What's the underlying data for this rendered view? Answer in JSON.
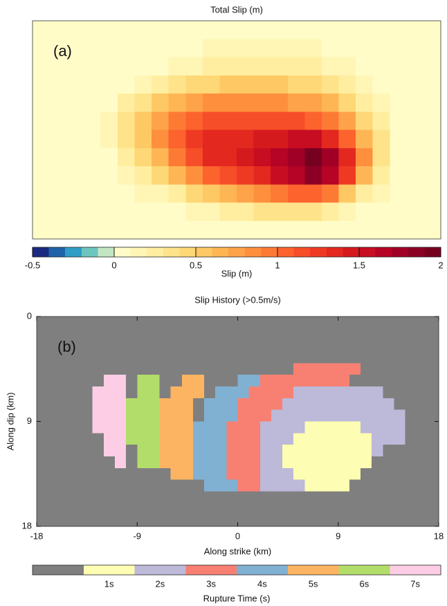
{
  "chart_data": [
    {
      "type": "heatmap",
      "title": "Total Slip (m)",
      "annotation": "(a)",
      "z": [
        [
          0,
          0,
          0,
          0,
          0,
          0,
          0,
          0,
          0,
          0,
          0,
          0,
          0,
          0,
          0,
          0,
          0,
          0,
          0,
          0,
          0,
          0,
          0,
          0
        ],
        [
          0,
          0,
          0,
          0,
          0,
          0,
          0,
          0,
          0,
          0,
          0.1,
          0.1,
          0.1,
          0.1,
          0.1,
          0.1,
          0.1,
          0,
          0,
          0,
          0,
          0,
          0,
          0
        ],
        [
          0,
          0,
          0,
          0,
          0,
          0,
          0,
          0,
          0.1,
          0.1,
          0.2,
          0.2,
          0.2,
          0.2,
          0.2,
          0.2,
          0.2,
          0.1,
          0.1,
          0,
          0,
          0,
          0,
          0
        ],
        [
          0,
          0,
          0,
          0,
          0,
          0,
          0.1,
          0.2,
          0.3,
          0.4,
          0.4,
          0.5,
          0.5,
          0.5,
          0.5,
          0.4,
          0.4,
          0.3,
          0.2,
          0.1,
          0,
          0,
          0,
          0
        ],
        [
          0,
          0,
          0,
          0,
          0,
          0.2,
          0.3,
          0.5,
          0.6,
          0.7,
          0.8,
          0.8,
          0.8,
          0.8,
          0.8,
          0.7,
          0.7,
          0.6,
          0.4,
          0.2,
          0.1,
          0,
          0,
          0
        ],
        [
          0,
          0,
          0,
          0,
          0.1,
          0.3,
          0.5,
          0.7,
          0.9,
          1.0,
          1.1,
          1.1,
          1.1,
          1.1,
          1.1,
          1.1,
          1.0,
          0.9,
          0.7,
          0.4,
          0.2,
          0,
          0,
          0
        ],
        [
          0,
          0,
          0,
          0,
          0.1,
          0.3,
          0.5,
          0.8,
          1.0,
          1.2,
          1.3,
          1.3,
          1.3,
          1.4,
          1.4,
          1.5,
          1.5,
          1.3,
          1.0,
          0.6,
          0.3,
          0,
          0,
          0
        ],
        [
          0,
          0,
          0,
          0,
          0,
          0.2,
          0.4,
          0.6,
          0.9,
          1.1,
          1.3,
          1.3,
          1.4,
          1.5,
          1.6,
          1.7,
          1.9,
          1.7,
          1.3,
          0.8,
          0.3,
          0,
          0,
          0
        ],
        [
          0,
          0,
          0,
          0,
          0,
          0.1,
          0.2,
          0.4,
          0.6,
          0.8,
          1.0,
          1.1,
          1.2,
          1.3,
          1.5,
          1.6,
          1.8,
          1.6,
          1.2,
          0.6,
          0.2,
          0,
          0,
          0
        ],
        [
          0,
          0,
          0,
          0,
          0,
          0,
          0.1,
          0.1,
          0.2,
          0.4,
          0.5,
          0.6,
          0.7,
          0.8,
          0.9,
          1.0,
          1.0,
          0.9,
          0.5,
          0.2,
          0.1,
          0,
          0,
          0
        ],
        [
          0,
          0,
          0,
          0,
          0,
          0,
          0,
          0,
          0,
          0.1,
          0.1,
          0.2,
          0.2,
          0.3,
          0.3,
          0.3,
          0.3,
          0.2,
          0.1,
          0,
          0,
          0,
          0,
          0
        ],
        [
          0,
          0,
          0,
          0,
          0,
          0,
          0,
          0,
          0,
          0,
          0,
          0,
          0,
          0,
          0,
          0,
          0,
          0,
          0,
          0,
          0,
          0,
          0,
          0
        ]
      ],
      "colorbar": {
        "label": "Slip (m)",
        "clim": [
          -0.5,
          2
        ],
        "ticks": [
          -0.5,
          0,
          0.5,
          1,
          1.5,
          2
        ],
        "colors": [
          "#1b2a80",
          "#1f62a8",
          "#2f9dc6",
          "#6cc5be",
          "#c2e6c4",
          "#fffcc8",
          "#fff5b5",
          "#ffeea0",
          "#fee38a",
          "#fed876",
          "#fec864",
          "#feb655",
          "#fea349",
          "#fd8f3d",
          "#fd7a35",
          "#fc632d",
          "#f64e28",
          "#ef3a23",
          "#e3281f",
          "#d51a1e",
          "#c70d22",
          "#b50426",
          "#a10026",
          "#8c0026",
          "#76001f"
        ]
      }
    },
    {
      "type": "category-map",
      "title": "Slip History (>0.5m/s)",
      "annotation": "(b)",
      "x_label": "Along strike (km)",
      "y_label": "Along dip (km)",
      "xlim": [
        -18,
        18
      ],
      "ylim": [
        18,
        0
      ],
      "xticks": [
        -18,
        -9,
        0,
        9,
        18
      ],
      "yticks": [
        0,
        9,
        18
      ],
      "z": [
        [
          0,
          0,
          0,
          0,
          0,
          0,
          0,
          0,
          0,
          0,
          0,
          0,
          0,
          0,
          0,
          0,
          0,
          0,
          0,
          0,
          0,
          0,
          0,
          0,
          0,
          0,
          0,
          0,
          0,
          0,
          0,
          0,
          0,
          0,
          0,
          0
        ],
        [
          0,
          0,
          0,
          0,
          0,
          0,
          0,
          0,
          0,
          0,
          0,
          0,
          0,
          0,
          0,
          0,
          0,
          0,
          0,
          0,
          0,
          0,
          0,
          0,
          0,
          0,
          0,
          0,
          0,
          0,
          0,
          0,
          0,
          0,
          0,
          0
        ],
        [
          0,
          0,
          0,
          0,
          0,
          0,
          0,
          0,
          0,
          0,
          0,
          0,
          0,
          0,
          0,
          0,
          0,
          0,
          0,
          0,
          0,
          0,
          0,
          0,
          0,
          0,
          0,
          0,
          0,
          0,
          0,
          0,
          0,
          0,
          0,
          0
        ],
        [
          0,
          0,
          0,
          0,
          0,
          0,
          0,
          0,
          0,
          0,
          0,
          0,
          0,
          0,
          0,
          0,
          0,
          0,
          0,
          0,
          0,
          0,
          0,
          0,
          0,
          0,
          0,
          0,
          0,
          0,
          0,
          0,
          0,
          0,
          0,
          0
        ],
        [
          0,
          0,
          0,
          0,
          0,
          0,
          0,
          0,
          0,
          0,
          0,
          0,
          0,
          0,
          0,
          0,
          0,
          0,
          0,
          0,
          0,
          0,
          0,
          3,
          3,
          3,
          3,
          3,
          3,
          0,
          0,
          0,
          0,
          0,
          0,
          0
        ],
        [
          0,
          0,
          0,
          0,
          0,
          0,
          7,
          7,
          0,
          6,
          6,
          0,
          0,
          5,
          5,
          0,
          0,
          0,
          4,
          4,
          3,
          3,
          3,
          3,
          3,
          3,
          3,
          3,
          0,
          0,
          0,
          0,
          0,
          0,
          0,
          0
        ],
        [
          0,
          0,
          0,
          0,
          0,
          7,
          7,
          7,
          0,
          6,
          6,
          0,
          5,
          5,
          5,
          0,
          4,
          4,
          4,
          3,
          3,
          3,
          3,
          2,
          2,
          2,
          2,
          2,
          2,
          2,
          2,
          0,
          0,
          0,
          0,
          0
        ],
        [
          0,
          0,
          0,
          0,
          0,
          7,
          7,
          7,
          6,
          6,
          6,
          5,
          5,
          5,
          0,
          4,
          4,
          4,
          3,
          3,
          3,
          3,
          2,
          2,
          2,
          2,
          2,
          2,
          2,
          2,
          2,
          2,
          0,
          0,
          0,
          0
        ],
        [
          0,
          0,
          0,
          0,
          0,
          7,
          7,
          7,
          6,
          6,
          6,
          5,
          5,
          5,
          0,
          4,
          4,
          4,
          3,
          3,
          3,
          2,
          2,
          2,
          2,
          2,
          2,
          2,
          2,
          2,
          2,
          2,
          2,
          0,
          0,
          0
        ],
        [
          0,
          0,
          0,
          0,
          0,
          7,
          7,
          7,
          6,
          6,
          6,
          5,
          5,
          5,
          4,
          4,
          4,
          3,
          3,
          3,
          2,
          2,
          2,
          2,
          1,
          1,
          1,
          1,
          1,
          2,
          2,
          2,
          2,
          0,
          0,
          0
        ],
        [
          0,
          0,
          0,
          0,
          0,
          0,
          7,
          7,
          6,
          6,
          6,
          5,
          5,
          5,
          4,
          4,
          4,
          3,
          3,
          3,
          2,
          2,
          2,
          1,
          1,
          1,
          1,
          1,
          1,
          1,
          2,
          2,
          2,
          0,
          0,
          0
        ],
        [
          0,
          0,
          0,
          0,
          0,
          0,
          7,
          7,
          0,
          6,
          6,
          5,
          5,
          5,
          4,
          4,
          4,
          3,
          3,
          3,
          2,
          2,
          1,
          1,
          1,
          1,
          1,
          1,
          1,
          1,
          2,
          0,
          0,
          0,
          0,
          0
        ],
        [
          0,
          0,
          0,
          0,
          0,
          0,
          0,
          7,
          0,
          6,
          6,
          5,
          5,
          5,
          4,
          4,
          4,
          3,
          3,
          3,
          2,
          2,
          1,
          1,
          1,
          1,
          1,
          1,
          1,
          1,
          0,
          0,
          0,
          0,
          0,
          0
        ],
        [
          0,
          0,
          0,
          0,
          0,
          0,
          0,
          0,
          0,
          0,
          0,
          0,
          5,
          5,
          4,
          4,
          4,
          3,
          3,
          3,
          2,
          2,
          2,
          1,
          1,
          1,
          1,
          1,
          1,
          0,
          0,
          0,
          0,
          0,
          0,
          0
        ],
        [
          0,
          0,
          0,
          0,
          0,
          0,
          0,
          0,
          0,
          0,
          0,
          0,
          0,
          0,
          0,
          4,
          4,
          4,
          3,
          3,
          2,
          2,
          2,
          2,
          1,
          1,
          1,
          1,
          0,
          0,
          0,
          0,
          0,
          0,
          0,
          0
        ],
        [
          0,
          0,
          0,
          0,
          0,
          0,
          0,
          0,
          0,
          0,
          0,
          0,
          0,
          0,
          0,
          0,
          0,
          0,
          0,
          0,
          0,
          0,
          0,
          0,
          0,
          0,
          0,
          0,
          0,
          0,
          0,
          0,
          0,
          0,
          0,
          0
        ],
        [
          0,
          0,
          0,
          0,
          0,
          0,
          0,
          0,
          0,
          0,
          0,
          0,
          0,
          0,
          0,
          0,
          0,
          0,
          0,
          0,
          0,
          0,
          0,
          0,
          0,
          0,
          0,
          0,
          0,
          0,
          0,
          0,
          0,
          0,
          0,
          0
        ],
        [
          0,
          0,
          0,
          0,
          0,
          0,
          0,
          0,
          0,
          0,
          0,
          0,
          0,
          0,
          0,
          0,
          0,
          0,
          0,
          0,
          0,
          0,
          0,
          0,
          0,
          0,
          0,
          0,
          0,
          0,
          0,
          0,
          0,
          0,
          0,
          0
        ]
      ],
      "colorbar": {
        "label": "Rupture Time (s)",
        "categories": [
          null,
          "1s",
          "2s",
          "3s",
          "4s",
          "5s",
          "6s",
          "7s"
        ],
        "colors": [
          "#7f7f7f",
          "#fdfdb3",
          "#bdb9d9",
          "#f88072",
          "#80b1d3",
          "#fcb462",
          "#b3dd6a",
          "#fccde5"
        ]
      }
    }
  ]
}
